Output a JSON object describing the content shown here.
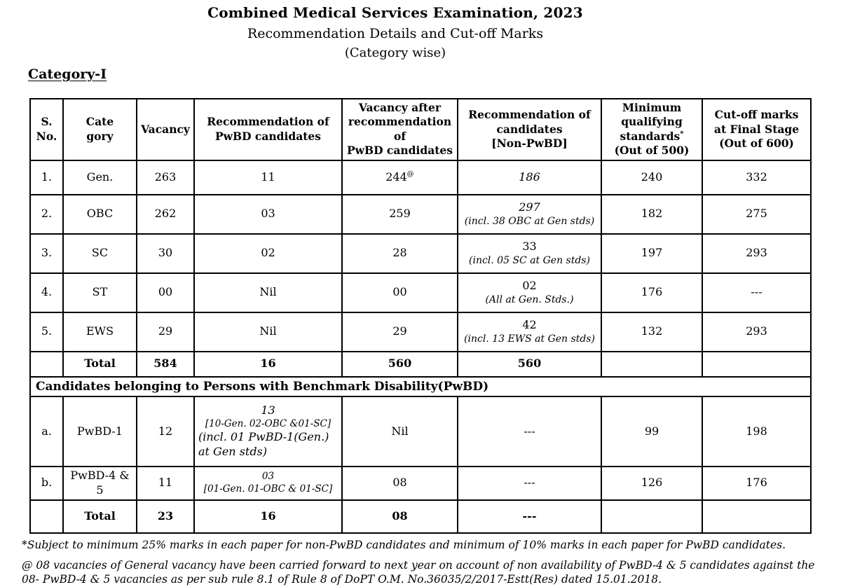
{
  "header": {
    "title": "Combined Medical Services Examination, 2023",
    "subtitle": "Recommendation Details and Cut-off Marks",
    "subtitle2": "(Category wise)",
    "section_label": "Category-I"
  },
  "table": {
    "columns": [
      {
        "name": "serial-number",
        "lines": [
          "S.",
          "No."
        ]
      },
      {
        "name": "category",
        "lines": [
          "Cate",
          "gory"
        ]
      },
      {
        "name": "vacancy",
        "lines": [
          "Vacancy"
        ]
      },
      {
        "name": "recommendation-pwbd",
        "lines": [
          "Recommendation of",
          "PwBD candidates"
        ]
      },
      {
        "name": "vacancy-after-pwbd",
        "lines": [
          "Vacancy after",
          "recommendation",
          "of",
          "PwBD candidates"
        ]
      },
      {
        "name": "recommendation-non-pwbd",
        "lines": [
          "Recommendation of",
          "candidates",
          "[Non-PwBD]"
        ]
      },
      {
        "name": "minimum-qualifying",
        "lines": [
          "Minimum",
          "qualifying",
          {
            "t": "standards",
            "sup": "*"
          },
          "(Out of 500)"
        ]
      },
      {
        "name": "cutoff-final-stage",
        "lines": [
          "Cut-off marks",
          "at Final Stage",
          "(Out of 600)"
        ]
      }
    ],
    "rows": [
      {
        "type": "data",
        "cells": [
          "1.",
          "Gen.",
          "263",
          "11",
          {
            "t": "244",
            "sup": "@"
          },
          {
            "lines": [
              {
                "t": "186",
                "italic": true
              }
            ]
          },
          "240",
          "332"
        ]
      },
      {
        "type": "data",
        "cells": [
          "2.",
          "OBC",
          "262",
          "03",
          "259",
          {
            "lines": [
              {
                "t": "297",
                "italic": true
              },
              {
                "t": "(incl. 38 OBC at Gen stds)",
                "italic": true,
                "note": true
              }
            ]
          },
          "182",
          "275"
        ]
      },
      {
        "type": "data",
        "cells": [
          "3.",
          "SC",
          "30",
          "02",
          "28",
          {
            "lines": [
              "33",
              {
                "t": "(incl. 05 SC at Gen stds)",
                "italic": true,
                "note": true
              }
            ]
          },
          "197",
          "293"
        ]
      },
      {
        "type": "data",
        "cells": [
          "4.",
          "ST",
          "00",
          "Nil",
          "00",
          {
            "lines": [
              "02",
              {
                "t": "(All at Gen. Stds.)",
                "italic": true,
                "note": true
              }
            ]
          },
          "176",
          "---"
        ]
      },
      {
        "type": "data",
        "cells": [
          "5.",
          "EWS",
          "29",
          "Nil",
          "29",
          {
            "lines": [
              "42",
              {
                "t": "(incl. 13 EWS at Gen stds)",
                "italic": true,
                "note": true
              }
            ]
          },
          "132",
          "293"
        ]
      },
      {
        "type": "total",
        "cells": [
          "",
          {
            "t": "Total",
            "bold": true
          },
          {
            "t": "584",
            "bold": true
          },
          {
            "t": "16",
            "bold": true
          },
          {
            "t": "560",
            "bold": true
          },
          {
            "t": "560",
            "bold": true
          },
          "",
          ""
        ]
      },
      {
        "type": "banner",
        "text": "Candidates belonging to Persons with Benchmark Disability(PwBD)"
      },
      {
        "type": "data",
        "cells": [
          "a.",
          "PwBD-1",
          "12",
          {
            "lines": [
              {
                "t": "13",
                "italic": true
              },
              {
                "t": "[10-Gen. 02-OBC &01-SC]",
                "italic": true,
                "small": true
              },
              {
                "t": "(incl. 01 PwBD-1(Gen.) at Gen stds)",
                "italic": true,
                "left": true
              }
            ]
          },
          "Nil",
          "---",
          "99",
          "198"
        ]
      },
      {
        "type": "data",
        "cells": [
          "b.",
          "PwBD-4 & 5",
          "11",
          {
            "lines": [
              {
                "t": "03",
                "italic": true,
                "small": true
              },
              {
                "t": "[01-Gen. 01-OBC & 01-SC]",
                "italic": true,
                "small": true
              }
            ]
          },
          "08",
          "---",
          "126",
          "176"
        ]
      },
      {
        "type": "total",
        "cells": [
          "",
          {
            "t": "Total",
            "bold": true
          },
          {
            "t": "23",
            "bold": true
          },
          {
            "t": "16",
            "bold": true
          },
          {
            "t": "08",
            "bold": true
          },
          {
            "t": "---",
            "bold": true
          },
          "",
          ""
        ]
      }
    ]
  },
  "footnotes": [
    "*Subject to minimum 25% marks in each paper for non-PwBD candidates and minimum of 10% marks in each paper for PwBD candidates.",
    "@ 08 vacancies of  General vacancy have been carried forward to next year  on account of non availability of PwBD-4 & 5 candidates against the 08- PwBD-4 & 5 vacancies  as per sub rule 8.1 of Rule 8 of DoPT O.M. No.36035/2/2017-Estt(Res) dated 15.01.2018."
  ]
}
